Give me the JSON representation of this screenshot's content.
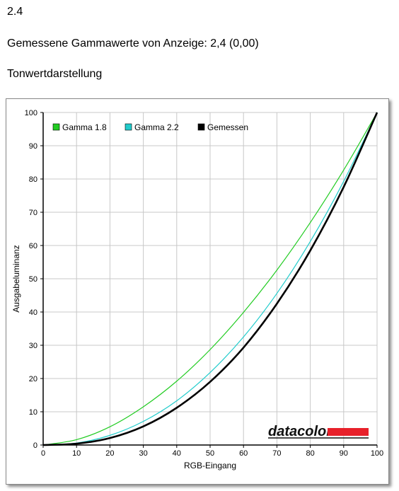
{
  "header": {
    "value": "2.4",
    "measured_text": "Gemessene Gammawerte von Anzeige: 2,4 (0,00)",
    "section_title": "Tonwertdarstellung"
  },
  "brand": {
    "logo_text": "datacolor",
    "accent": "#e8202a"
  },
  "chart_data": {
    "type": "line",
    "xlabel": "RGB-Eingang",
    "ylabel": "Ausgabeluminanz",
    "xlim": [
      0,
      100
    ],
    "ylim": [
      0,
      100
    ],
    "xticks": [
      0,
      10,
      20,
      30,
      40,
      50,
      60,
      70,
      80,
      90,
      100
    ],
    "yticks": [
      0,
      10,
      20,
      30,
      40,
      50,
      60,
      70,
      80,
      90,
      100
    ],
    "grid": true,
    "legend_position": "top-left",
    "x": [
      0,
      10,
      20,
      30,
      40,
      50,
      60,
      70,
      80,
      90,
      100
    ],
    "series": [
      {
        "name": "Gamma 1.8",
        "color": "#22cc22",
        "values": [
          0,
          1.6,
          5.5,
          11.5,
          19.2,
          28.7,
          39.9,
          52.6,
          66.9,
          82.7,
          100
        ]
      },
      {
        "name": "Gamma 2.2",
        "color": "#22cccc",
        "values": [
          0,
          0.6,
          2.9,
          7.1,
          13.3,
          21.8,
          32.5,
          45.6,
          61.2,
          79.3,
          100
        ]
      },
      {
        "name": "Gemessen",
        "color": "#000000",
        "values": [
          0,
          0.4,
          2.1,
          5.6,
          11.2,
          19.0,
          29.3,
          42.5,
          58.5,
          77.6,
          100
        ]
      }
    ]
  }
}
